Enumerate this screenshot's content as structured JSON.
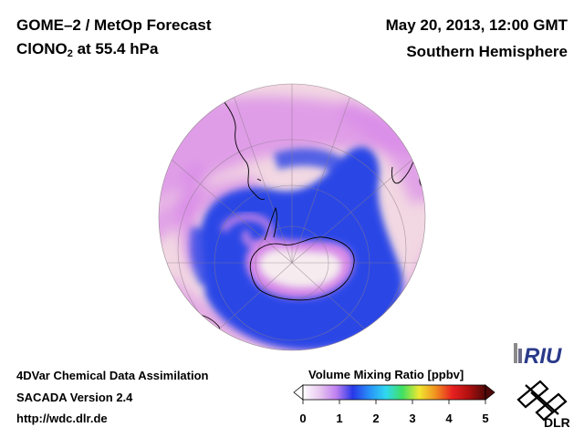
{
  "header": {
    "title_line1": "GOME–2 / MetOp Forecast",
    "title_line2_main": "ClONO",
    "title_line2_sub": "2",
    "title_line2_rest": " at 55.4 hPa",
    "date": "May 20, 2013, 12:00 GMT",
    "region": "Southern Hemisphere"
  },
  "footer": {
    "line1": "4DVar Chemical Data Assimilation",
    "line2": "SACADA Version 2.4",
    "line3": "http://wdc.dlr.de"
  },
  "colorbar": {
    "title": "Volume Mixing Ratio [ppbv]",
    "ticks": [
      "0",
      "1",
      "2",
      "3",
      "4",
      "5"
    ],
    "min": 0,
    "max": 5,
    "stops": [
      "#ffffff",
      "#e8c8f0",
      "#c080f0",
      "#2838e8",
      "#2890f8",
      "#30d8f0",
      "#40e060",
      "#f0e830",
      "#f09020",
      "#e82020",
      "#b01010",
      "#500808"
    ]
  },
  "logos": {
    "riu": "RIU",
    "dlr": "DLR"
  },
  "colors": {
    "ocean_background": "#f2d8e2",
    "low_vmr": "#d88ae8",
    "high_vmr": "#2a46e6",
    "land_outline": "#000000"
  }
}
